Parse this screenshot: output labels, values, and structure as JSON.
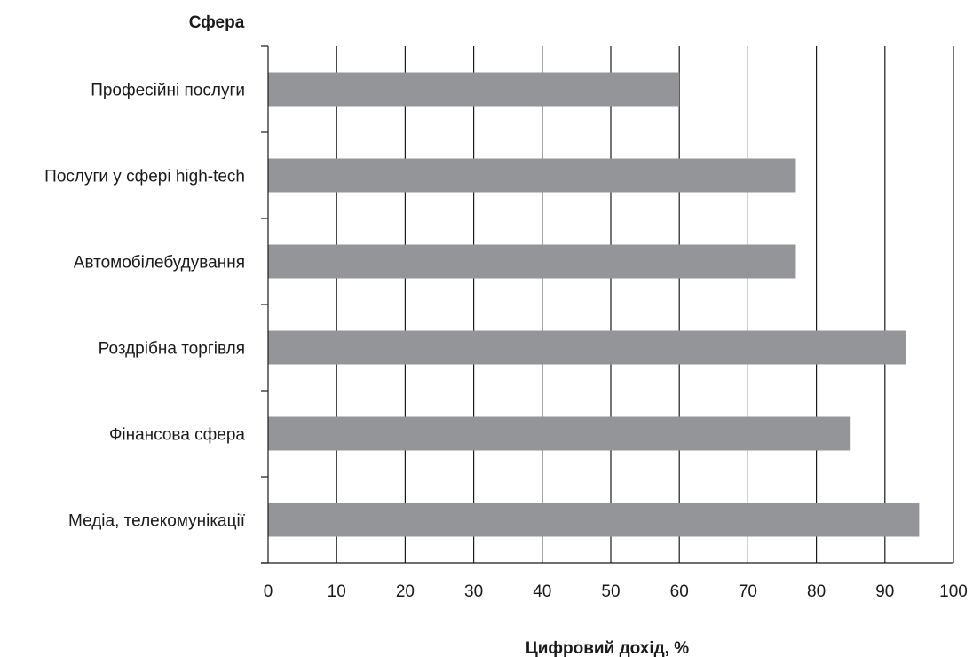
{
  "chart_data": {
    "type": "bar",
    "orientation": "horizontal",
    "ylabel": "Сфера",
    "xlabel": "Цифровий дохід, %",
    "categories": [
      "Професійні послуги",
      "Послуги у сфері high-tech",
      "Автомобілебудування",
      "Роздрібна торгівля",
      "Фінансова сфера",
      "Медіа, телекомунікації"
    ],
    "values": [
      60,
      77,
      77,
      93,
      85,
      95
    ],
    "xlim": [
      0,
      100
    ],
    "xticks": [
      0,
      10,
      20,
      30,
      40,
      50,
      60,
      70,
      80,
      90,
      100
    ],
    "xtick_labels": [
      "0",
      "10",
      "20",
      "30",
      "40",
      "50",
      "60",
      "70",
      "80",
      "90",
      "100"
    ],
    "grid": "vertical",
    "bar_color": "#939598",
    "grid_color": "#1a1a1a"
  }
}
